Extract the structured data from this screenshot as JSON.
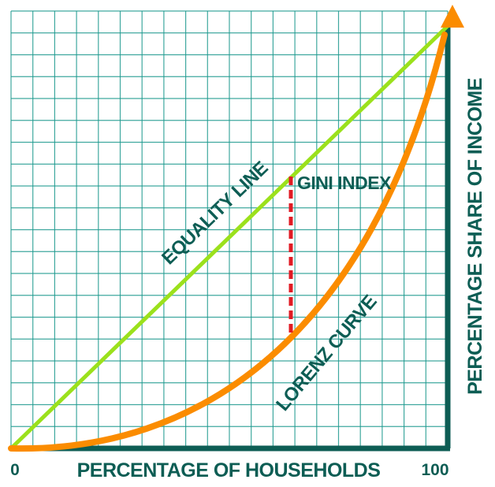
{
  "diagram": {
    "x_axis_label": "PERCENTAGE OF HOUSEHOLDS",
    "y_axis_label": "PERCENTAGE SHARE OF INCOME",
    "origin_label": "0",
    "x_max_label": "100",
    "equality_line_label": "EQUALITY LINE",
    "lorenz_curve_label": "LORENZ CURVE",
    "gini_index_label": "GINI INDEX",
    "colors": {
      "grid": "#1e9a8f",
      "axis": "#0d5d54",
      "equality_line": "#9be11c",
      "lorenz_curve": "#fb8c00",
      "gini_gap": "#e01b24",
      "text": "#0d5d54"
    }
  }
}
